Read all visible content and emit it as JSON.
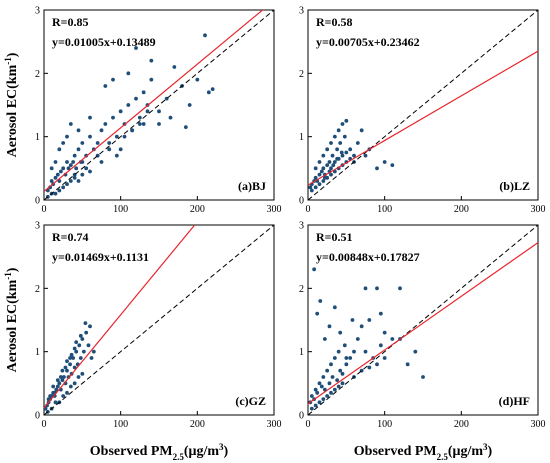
{
  "labels": {
    "ylabel_main": "Aerosol EC(km",
    "ylabel_sup": "-1",
    "ylabel_close": ")",
    "xlabel_main": "Observed PM",
    "xlabel_sub": "2.5",
    "xlabel_unit_open": "(μg/m",
    "xlabel_unit_sup": "3",
    "xlabel_unit_close": ")"
  },
  "colors": {
    "points": "#1f4e79",
    "fit_line": "#e8262d",
    "one_to_one": "#000000",
    "axes": "#000000"
  },
  "chart_data": [
    {
      "type": "scatter",
      "panel": "(a)BJ",
      "r_text": "R=0.85",
      "eq_text": "y=0.01005x+0.13489",
      "slope": 0.01005,
      "intercept": 0.13489,
      "xlim": [
        0,
        300
      ],
      "ylim": [
        0,
        3
      ],
      "xticks": [
        0,
        100,
        200,
        300
      ],
      "yticks": [
        0,
        1,
        2,
        3
      ],
      "one_to_one_dashed": true,
      "points_x": [
        5,
        8,
        10,
        12,
        15,
        18,
        20,
        22,
        25,
        28,
        30,
        32,
        35,
        38,
        40,
        42,
        45,
        48,
        50,
        55,
        60,
        65,
        70,
        75,
        80,
        85,
        90,
        95,
        100,
        105,
        110,
        115,
        120,
        125,
        130,
        135,
        140,
        150,
        160,
        170,
        180,
        190,
        210,
        220,
        10,
        15,
        20,
        25,
        30,
        35,
        40,
        45,
        50,
        60,
        70,
        80,
        90,
        100,
        110,
        120,
        130,
        140,
        5,
        10,
        15,
        20,
        25,
        30,
        35,
        40,
        45,
        50,
        55,
        60,
        75,
        85,
        95,
        105,
        115,
        125,
        135,
        150,
        165,
        185,
        200,
        215
      ],
      "points_y": [
        0.15,
        0.2,
        0.3,
        0.25,
        0.35,
        0.4,
        0.3,
        0.45,
        0.5,
        0.4,
        0.6,
        0.5,
        0.55,
        0.6,
        0.7,
        0.5,
        0.8,
        0.6,
        0.9,
        0.7,
        1.0,
        0.8,
        0.9,
        1.1,
        1.2,
        0.9,
        1.3,
        1.0,
        1.4,
        1.2,
        1.5,
        1.1,
        1.6,
        1.3,
        1.7,
        1.5,
        1.9,
        1.4,
        1.6,
        2.1,
        1.8,
        1.5,
        2.6,
        1.75,
        0.5,
        0.6,
        0.8,
        0.9,
        1.0,
        1.2,
        0.4,
        1.1,
        0.6,
        1.3,
        0.7,
        1.8,
        1.9,
        0.8,
        2.0,
        2.4,
        1.2,
        2.2,
        0.05,
        0.1,
        0.1,
        0.15,
        0.2,
        0.25,
        0.3,
        0.35,
        0.3,
        0.4,
        0.5,
        0.45,
        0.6,
        0.8,
        0.7,
        1.0,
        1.1,
        1.2,
        1.4,
        1.2,
        1.3,
        1.15,
        1.9,
        1.7
      ]
    },
    {
      "type": "scatter",
      "panel": "(b)LZ",
      "r_text": "R=0.58",
      "eq_text": "y=0.00705x+0.23462",
      "slope": 0.00705,
      "intercept": 0.23462,
      "xlim": [
        0,
        300
      ],
      "ylim": [
        0,
        3
      ],
      "xticks": [
        0,
        100,
        200,
        300
      ],
      "yticks": [
        0,
        1,
        2,
        3
      ],
      "one_to_one_dashed": true,
      "points_x": [
        3,
        5,
        8,
        10,
        12,
        15,
        18,
        20,
        22,
        25,
        28,
        30,
        32,
        35,
        38,
        40,
        42,
        45,
        48,
        50,
        55,
        60,
        65,
        70,
        75,
        80,
        90,
        100,
        110,
        5,
        10,
        15,
        20,
        25,
        30,
        35,
        40,
        45,
        50,
        55,
        60,
        10,
        15,
        20,
        25,
        30,
        35,
        40,
        45,
        50,
        22,
        28,
        33,
        38,
        44
      ],
      "points_y": [
        0.2,
        0.25,
        0.3,
        0.35,
        0.3,
        0.4,
        0.45,
        0.5,
        0.4,
        0.55,
        0.6,
        0.5,
        0.7,
        0.6,
        0.8,
        0.65,
        0.9,
        0.7,
        1.0,
        0.75,
        0.8,
        0.6,
        0.9,
        1.1,
        0.7,
        0.8,
        0.5,
        0.6,
        0.55,
        0.15,
        0.2,
        0.25,
        0.3,
        0.35,
        0.4,
        0.45,
        0.5,
        0.55,
        0.6,
        0.65,
        0.7,
        0.5,
        0.6,
        0.7,
        0.8,
        0.9,
        1.0,
        1.1,
        1.2,
        1.25,
        0.35,
        0.45,
        0.55,
        0.65,
        0.75
      ]
    },
    {
      "type": "scatter",
      "panel": "(c)GZ",
      "r_text": "R=0.74",
      "eq_text": "y=0.01469x+0.1131",
      "slope": 0.01469,
      "intercept": 0.1131,
      "xlim": [
        0,
        300
      ],
      "ylim": [
        0,
        3
      ],
      "xticks": [
        0,
        100,
        200,
        300
      ],
      "yticks": [
        0,
        1,
        2,
        3
      ],
      "one_to_one_dashed": true,
      "points_x": [
        2,
        4,
        6,
        8,
        10,
        12,
        14,
        16,
        18,
        20,
        22,
        24,
        26,
        28,
        30,
        32,
        34,
        36,
        38,
        40,
        42,
        44,
        46,
        48,
        50,
        52,
        55,
        58,
        60,
        62,
        65,
        5,
        10,
        15,
        20,
        25,
        30,
        35,
        40,
        45,
        50,
        8,
        12,
        18,
        24,
        30,
        36,
        42,
        48,
        54,
        6,
        14,
        22,
        28,
        34,
        40
      ],
      "points_y": [
        0.1,
        0.15,
        0.2,
        0.25,
        0.3,
        0.35,
        0.3,
        0.4,
        0.45,
        0.5,
        0.4,
        0.55,
        0.6,
        0.5,
        0.7,
        0.6,
        0.8,
        0.65,
        0.9,
        0.75,
        1.0,
        0.8,
        1.1,
        0.9,
        1.2,
        1.0,
        1.3,
        1.1,
        1.4,
        0.9,
        1.0,
        0.05,
        0.1,
        0.2,
        0.2,
        0.3,
        0.35,
        0.45,
        0.5,
        0.6,
        0.65,
        0.3,
        0.45,
        0.55,
        0.7,
        0.85,
        0.95,
        1.15,
        1.25,
        1.45,
        0.25,
        0.35,
        0.6,
        0.75,
        0.9,
        1.05
      ]
    },
    {
      "type": "scatter",
      "panel": "(d)HF",
      "r_text": "R=0.51",
      "eq_text": "y=0.00848x+0.17827",
      "slope": 0.00848,
      "intercept": 0.17827,
      "xlim": [
        0,
        300
      ],
      "ylim": [
        0,
        3
      ],
      "xticks": [
        0,
        100,
        200,
        300
      ],
      "yticks": [
        0,
        1,
        2,
        3
      ],
      "one_to_one_dashed": true,
      "points_x": [
        3,
        5,
        8,
        10,
        12,
        15,
        18,
        20,
        22,
        25,
        28,
        30,
        32,
        35,
        38,
        40,
        42,
        45,
        48,
        50,
        55,
        60,
        65,
        70,
        75,
        80,
        85,
        90,
        95,
        100,
        110,
        120,
        130,
        140,
        150,
        5,
        10,
        15,
        20,
        25,
        30,
        35,
        40,
        45,
        60,
        70,
        80,
        90,
        100,
        8,
        12,
        16,
        22,
        28,
        35,
        42,
        50,
        58,
        75,
        95,
        120
      ],
      "points_y": [
        0.2,
        0.3,
        0.25,
        0.4,
        0.35,
        0.5,
        0.45,
        0.6,
        0.4,
        0.7,
        0.5,
        0.8,
        0.6,
        0.9,
        0.55,
        1.0,
        0.7,
        0.65,
        1.1,
        0.8,
        0.9,
        1.0,
        1.2,
        1.4,
        1.0,
        1.5,
        0.9,
        2.0,
        1.1,
        1.3,
        1.2,
        2.0,
        0.8,
        1.0,
        0.6,
        0.1,
        0.15,
        0.2,
        0.25,
        0.3,
        0.35,
        0.4,
        0.45,
        0.5,
        0.6,
        0.7,
        0.75,
        0.8,
        0.9,
        2.3,
        1.6,
        1.8,
        1.2,
        1.4,
        1.7,
        1.3,
        0.9,
        1.5,
        2.0,
        1.6,
        1.2
      ]
    }
  ]
}
